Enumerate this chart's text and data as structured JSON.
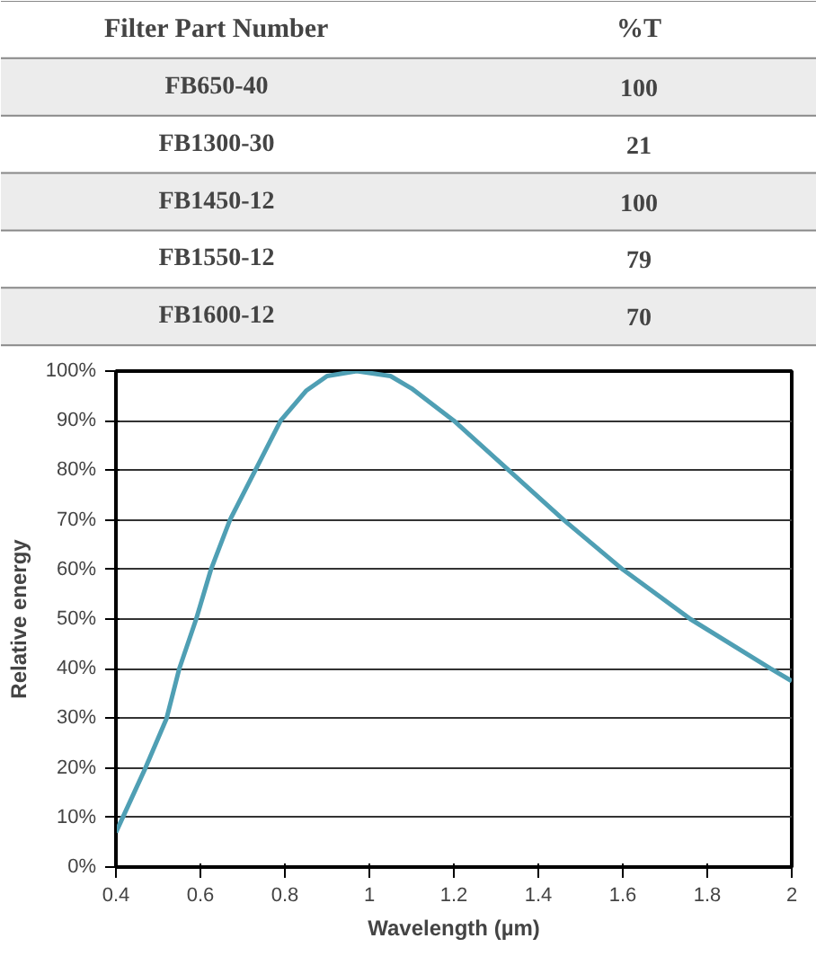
{
  "chart_data": [
    {
      "type": "other",
      "annotations": [
        "Filter Part Number",
        "%T"
      ],
      "categories": [
        "FB650-40",
        "FB1300-30",
        "FB1450-12",
        "FB1550-12",
        "FB1600-12"
      ],
      "values": [
        100,
        21,
        100,
        79,
        70
      ],
      "data_labels": true
    },
    {
      "type": "line",
      "xlabel": "Wavelength (µm)",
      "ylabel": "Relative energy",
      "x": [
        0.4,
        0.47,
        0.52,
        0.55,
        0.59,
        0.625,
        0.67,
        0.73,
        0.79,
        0.85,
        0.9,
        0.97,
        1.05,
        1.1,
        1.2,
        1.33,
        1.46,
        1.6,
        1.76,
        1.95,
        2.0
      ],
      "series": [
        {
          "color": "#4f9fb4",
          "values": [
            7,
            20,
            30,
            40,
            50,
            60,
            70,
            80,
            90,
            96,
            99,
            100,
            99,
            96.5,
            90,
            80,
            70,
            60,
            50,
            40,
            37.5
          ]
        }
      ],
      "xlim": [
        0.4,
        2
      ],
      "ylim": [
        0,
        100
      ],
      "xticks": [
        0.4,
        0.6,
        0.8,
        1,
        1.2,
        1.4,
        1.6,
        1.8,
        2
      ],
      "yticks": [
        {
          "value": 0,
          "label": "0%"
        },
        {
          "value": 10,
          "label": "10%"
        },
        {
          "value": 20,
          "label": "20%"
        },
        {
          "value": 30,
          "label": "30%"
        },
        {
          "value": 40,
          "label": "40%"
        },
        {
          "value": 50,
          "label": "50%"
        },
        {
          "value": 60,
          "label": "60%"
        },
        {
          "value": 70,
          "label": "70%"
        },
        {
          "value": 80,
          "label": "80%"
        },
        {
          "value": 90,
          "label": "90%"
        },
        {
          "value": 100,
          "label": "100%"
        }
      ],
      "grid": "y",
      "marker": "none",
      "line_style": "solid"
    }
  ]
}
